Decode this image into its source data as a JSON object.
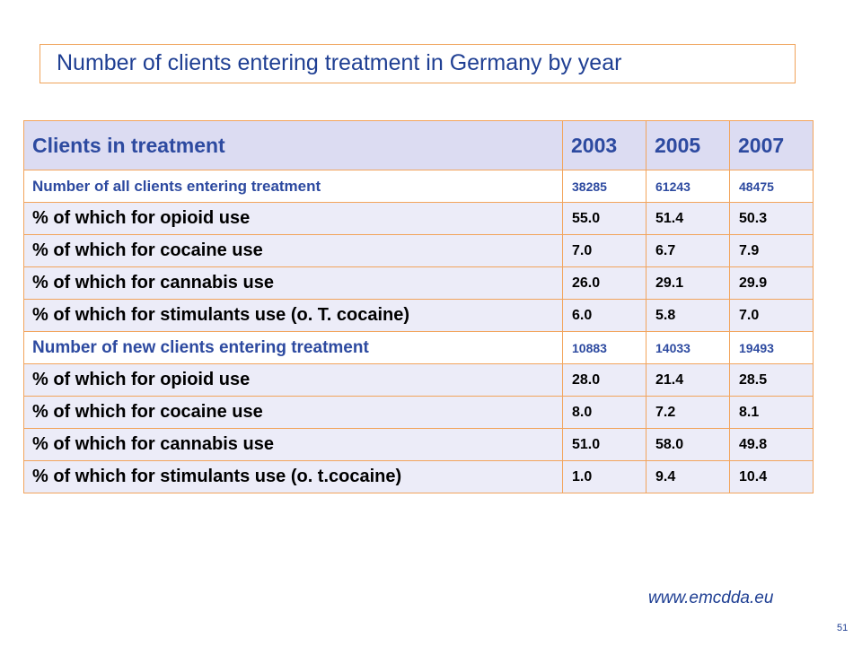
{
  "title": "Number of clients entering treatment in Germany by year",
  "table": {
    "headers": [
      "Clients in treatment",
      "2003",
      "2005",
      "2007"
    ],
    "rows": [
      {
        "label": "Number of all clients entering treatment",
        "values": [
          "38285",
          "61243",
          "48475"
        ]
      },
      {
        "label": "% of which for opioid use",
        "values": [
          "55.0",
          "51.4",
          "50.3"
        ]
      },
      {
        "label": "% of which for cocaine use",
        "values": [
          "7.0",
          "6.7",
          "7.9"
        ]
      },
      {
        "label": "% of which for cannabis use",
        "values": [
          "26.0",
          "29.1",
          "29.9"
        ]
      },
      {
        "label": "% of which for stimulants use (o. T. cocaine)",
        "values": [
          "6.0",
          "5.8",
          "7.0"
        ]
      },
      {
        "label": "Number of new clients entering treatment",
        "values": [
          "10883",
          "14033",
          "19493"
        ]
      },
      {
        "label": "% of which for opioid use",
        "values": [
          "28.0",
          "21.4",
          "28.5"
        ]
      },
      {
        "label": "% of which for cocaine use",
        "values": [
          "8.0",
          "7.2",
          "8.1"
        ]
      },
      {
        "label": "% of which for cannabis use",
        "values": [
          "51.0",
          "58.0",
          "49.8"
        ]
      },
      {
        "label": "% of which for stimulants use (o. t.cocaine)",
        "values": [
          "1.0",
          "9.4",
          "10.4"
        ]
      }
    ]
  },
  "source": "www.emcdda.eu",
  "page_number": "51",
  "colors": {
    "title_text": "#1f3f93",
    "border": "#f2a45c",
    "header_bg": "#dcdcf2",
    "sub_row_bg": "#ececf8"
  }
}
